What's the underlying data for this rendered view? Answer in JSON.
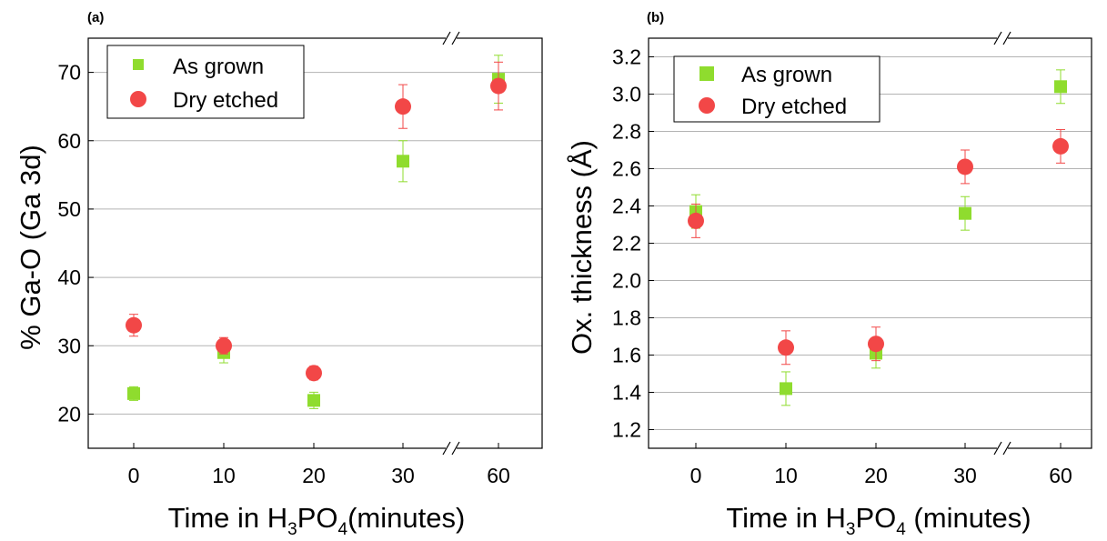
{
  "chart_data": [
    {
      "type": "scatter",
      "panel_label": "(a)",
      "ylabel": "% Ga-O (Ga 3d)",
      "xlabel_parts": [
        "Time in H",
        "3",
        "PO",
        "4",
        "(minutes)"
      ],
      "categories": [
        "0",
        "10",
        "20",
        "30",
        "60"
      ],
      "axis_break": "between 30 and 60",
      "ylim": [
        15,
        75
      ],
      "yticks": [
        20,
        30,
        40,
        50,
        60,
        70
      ],
      "grid": true,
      "legend_position": "top-left",
      "series": [
        {
          "name": "As grown",
          "marker": "square",
          "color": "#8fdc2e",
          "values": [
            23,
            29,
            22,
            57,
            69
          ],
          "errors": [
            1.0,
            1.5,
            1.2,
            3.0,
            3.5
          ]
        },
        {
          "name": "Dry etched",
          "marker": "circle",
          "color": "#f24747",
          "values": [
            33,
            30,
            26,
            65,
            68
          ],
          "errors": [
            1.6,
            1.2,
            1.0,
            3.2,
            3.5
          ]
        }
      ]
    },
    {
      "type": "scatter",
      "panel_label": "(b)",
      "ylabel": "Ox. thickness (Å)",
      "xlabel_parts": [
        "Time in H",
        "3",
        "PO",
        "4",
        " (minutes)"
      ],
      "categories": [
        "0",
        "10",
        "20",
        "30",
        "60"
      ],
      "axis_break": "between 30 and 60",
      "ylim": [
        1.1,
        3.3
      ],
      "yticks": [
        1.2,
        1.4,
        1.6,
        1.8,
        2.0,
        2.2,
        2.4,
        2.6,
        2.8,
        3.0,
        3.2
      ],
      "grid": true,
      "legend_position": "top-left",
      "series": [
        {
          "name": "As grown",
          "marker": "square",
          "color": "#8fdc2e",
          "values": [
            2.37,
            1.42,
            1.61,
            2.36,
            3.04
          ],
          "errors": [
            0.09,
            0.09,
            0.08,
            0.09,
            0.09
          ]
        },
        {
          "name": "Dry etched",
          "marker": "circle",
          "color": "#f24747",
          "values": [
            2.32,
            1.64,
            1.66,
            2.61,
            2.72
          ],
          "errors": [
            0.09,
            0.09,
            0.09,
            0.09,
            0.09
          ]
        }
      ]
    }
  ]
}
